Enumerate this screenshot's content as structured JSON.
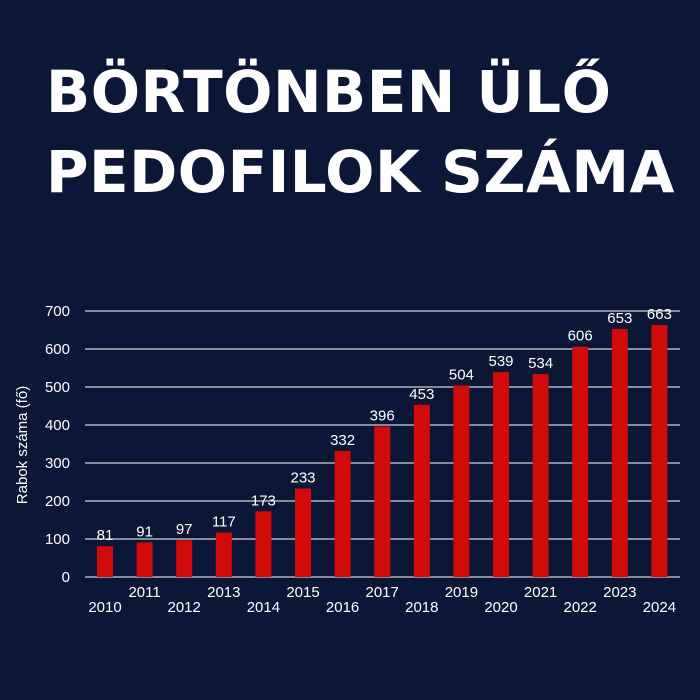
{
  "headline": {
    "line1": "BÖRTÖNBEN ÜLŐ",
    "line2": "PEDOFILOK SZÁMA"
  },
  "colors": {
    "background": "#0c1738",
    "bar": "#d10a0a",
    "text": "#ffffff",
    "grid": "#ffffff"
  },
  "chart_data": {
    "type": "bar",
    "title": "BÖRTÖNBEN ÜLŐ PEDOFILOK SZÁMA",
    "ylabel": "Rabok száma (fő)",
    "xlabel": "",
    "ylim": [
      0,
      700
    ],
    "yticks": [
      0,
      100,
      200,
      300,
      400,
      500,
      600,
      700
    ],
    "grid": true,
    "legend": "none",
    "categories": [
      "2010",
      "2011",
      "2012",
      "2013",
      "2014",
      "2015",
      "2016",
      "2017",
      "2018",
      "2019",
      "2020",
      "2021",
      "2022",
      "2023",
      "2024"
    ],
    "values": [
      81,
      91,
      97,
      117,
      173,
      233,
      332,
      396,
      453,
      504,
      539,
      534,
      606,
      653,
      663
    ]
  }
}
